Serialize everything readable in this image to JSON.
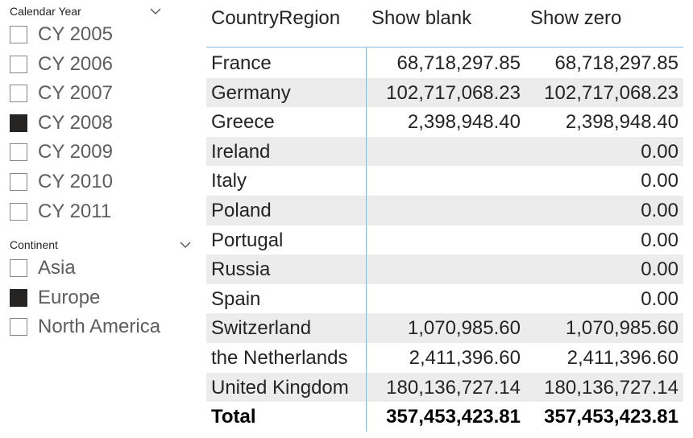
{
  "slicers": {
    "calendar_year": {
      "title": "Calendar Year",
      "items": [
        {
          "label": "CY 2005",
          "checked": false
        },
        {
          "label": "CY 2006",
          "checked": false
        },
        {
          "label": "CY 2007",
          "checked": false
        },
        {
          "label": "CY 2008",
          "checked": true
        },
        {
          "label": "CY 2009",
          "checked": false
        },
        {
          "label": "CY 2010",
          "checked": false
        },
        {
          "label": "CY 2011",
          "checked": false
        }
      ]
    },
    "continent": {
      "title": "Continent",
      "items": [
        {
          "label": "Asia",
          "checked": false
        },
        {
          "label": "Europe",
          "checked": true
        },
        {
          "label": "North America",
          "checked": false
        }
      ]
    }
  },
  "table": {
    "headers": [
      "CountryRegion",
      "Show blank",
      "Show zero"
    ],
    "rows": [
      [
        "France",
        "68,718,297.85",
        "68,718,297.85"
      ],
      [
        "Germany",
        "102,717,068.23",
        "102,717,068.23"
      ],
      [
        "Greece",
        "2,398,948.40",
        "2,398,948.40"
      ],
      [
        "Ireland",
        "",
        "0.00"
      ],
      [
        "Italy",
        "",
        "0.00"
      ],
      [
        "Poland",
        "",
        "0.00"
      ],
      [
        "Portugal",
        "",
        "0.00"
      ],
      [
        "Russia",
        "",
        "0.00"
      ],
      [
        "Spain",
        "",
        "0.00"
      ],
      [
        "Switzerland",
        "1,070,985.60",
        "1,070,985.60"
      ],
      [
        "the Netherlands",
        "2,411,396.60",
        "2,411,396.60"
      ],
      [
        "United Kingdom",
        "180,136,727.14",
        "180,136,727.14"
      ]
    ],
    "total": [
      "Total",
      "357,453,423.81",
      "357,453,423.81"
    ]
  },
  "colors": {
    "accent_line": "#8ab8de",
    "alt_row": "#ececec",
    "checked_box": "#252423"
  }
}
